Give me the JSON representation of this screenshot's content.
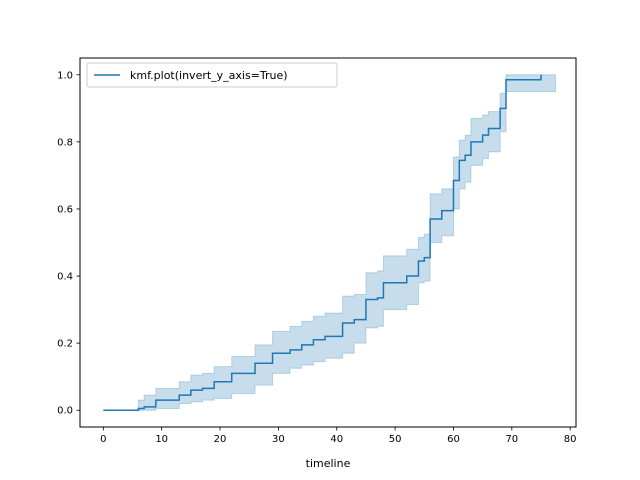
{
  "chart_data": {
    "type": "line",
    "xlabel": "timeline",
    "ylabel": "",
    "xlim": [
      -4,
      81
    ],
    "ylim": [
      -0.05,
      1.05
    ],
    "xticks": [
      0,
      10,
      20,
      30,
      40,
      50,
      60,
      70,
      80
    ],
    "yticks": [
      0.0,
      0.2,
      0.4,
      0.6,
      0.8,
      1.0
    ],
    "ytick_labels": [
      "0.0",
      "0.2",
      "0.4",
      "0.6",
      "0.8",
      "1.0"
    ],
    "legend_position": "top-left",
    "grid": false,
    "series": [
      {
        "name": "kmf.plot(invert_y_axis=True)",
        "color": "#1f77b4",
        "step": "post",
        "x": [
          0,
          6,
          7,
          9,
          13,
          15,
          17,
          19,
          22,
          26,
          29,
          32,
          34,
          36,
          38,
          41,
          43,
          45,
          47,
          48,
          52,
          54,
          55,
          56,
          58,
          60,
          61,
          62,
          63,
          65,
          66,
          68,
          69,
          75
        ],
        "y": [
          0.0,
          0.005,
          0.01,
          0.03,
          0.045,
          0.06,
          0.065,
          0.085,
          0.11,
          0.14,
          0.17,
          0.18,
          0.195,
          0.21,
          0.22,
          0.26,
          0.27,
          0.33,
          0.335,
          0.38,
          0.4,
          0.445,
          0.455,
          0.57,
          0.595,
          0.685,
          0.745,
          0.76,
          0.8,
          0.82,
          0.84,
          0.9,
          0.985,
          1.0
        ],
        "ci_lower": [
          0.0,
          0.0,
          0.0,
          0.005,
          0.02,
          0.025,
          0.03,
          0.035,
          0.05,
          0.075,
          0.11,
          0.125,
          0.135,
          0.145,
          0.155,
          0.17,
          0.2,
          0.245,
          0.25,
          0.3,
          0.315,
          0.38,
          0.385,
          0.5,
          0.52,
          0.6,
          0.66,
          0.68,
          0.73,
          0.75,
          0.77,
          0.83,
          0.95,
          0.95
        ],
        "ci_upper": [
          0.0,
          0.03,
          0.045,
          0.065,
          0.085,
          0.105,
          0.11,
          0.13,
          0.16,
          0.195,
          0.235,
          0.25,
          0.265,
          0.28,
          0.29,
          0.34,
          0.345,
          0.41,
          0.415,
          0.46,
          0.48,
          0.515,
          0.525,
          0.645,
          0.66,
          0.755,
          0.805,
          0.82,
          0.87,
          0.88,
          0.89,
          0.945,
          1.0,
          1.0
        ],
        "ci_end_x": 77.5
      }
    ]
  }
}
